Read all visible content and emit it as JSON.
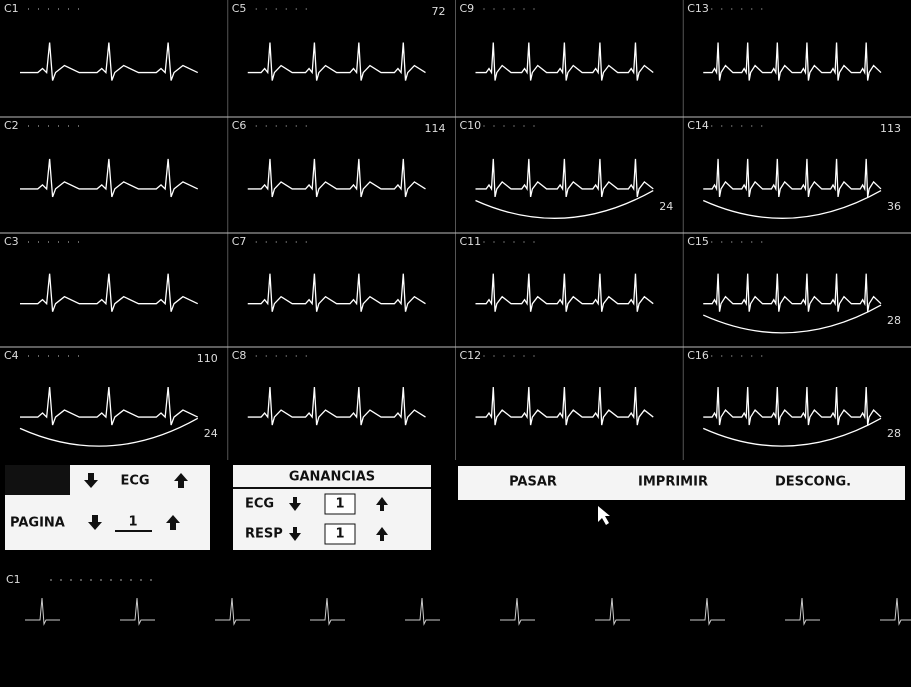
{
  "panels": [
    {
      "label": "C1"
    },
    {
      "label": "C5",
      "rate": "72"
    },
    {
      "label": "C9"
    },
    {
      "label": "C13"
    },
    {
      "label": "C2"
    },
    {
      "label": "C6",
      "rate": "114"
    },
    {
      "label": "C10",
      "resp": "24"
    },
    {
      "label": "C14",
      "rate": "113",
      "resp": "36"
    },
    {
      "label": "C3"
    },
    {
      "label": "C7"
    },
    {
      "label": "C11"
    },
    {
      "label": "C15",
      "resp": "28"
    },
    {
      "label": "C4",
      "rate": "110",
      "resp": "24"
    },
    {
      "label": "C8"
    },
    {
      "label": "C12"
    },
    {
      "label": "C16",
      "resp": "28"
    }
  ],
  "controls": {
    "page_box": {
      "mode": "ECG",
      "page_label": "PAGINA",
      "page": "1"
    },
    "gains": {
      "title": "GANANCIAS",
      "rows": [
        {
          "label": "ECG",
          "value": "1"
        },
        {
          "label": "RESP",
          "value": "1"
        }
      ]
    },
    "actions": [
      "PASAR",
      "IMPRIMIR",
      "DESCONG."
    ]
  },
  "strip": {
    "label": "C1"
  }
}
